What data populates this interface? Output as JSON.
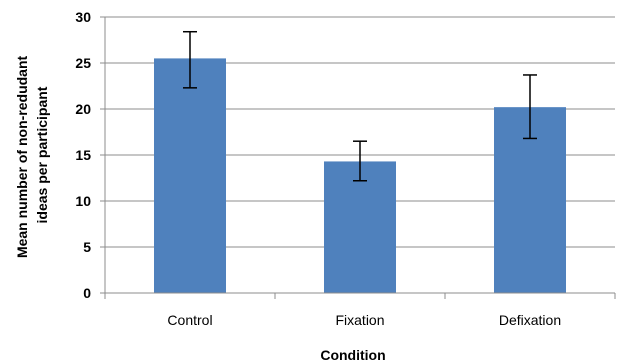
{
  "chart_data": {
    "type": "bar",
    "categories": [
      "Control",
      "Fixation",
      "Defixation"
    ],
    "values": [
      25.5,
      14.3,
      20.2
    ],
    "error_bars": [
      {
        "low": 22.3,
        "high": 28.4
      },
      {
        "low": 12.2,
        "high": 16.5
      },
      {
        "low": 16.8,
        "high": 23.7
      }
    ],
    "xlabel": "Condition",
    "ylabel_lines": [
      "Mean number of non-redudant",
      "ideas per participant"
    ],
    "ylim": [
      0,
      30
    ],
    "yticks": [
      0,
      5,
      10,
      15,
      20,
      25,
      30
    ],
    "grid": true,
    "legend": "none",
    "bar_color": "#4f81bd",
    "gridline_color": "#8c8c8c",
    "axis_color": "#8c8c8c"
  }
}
